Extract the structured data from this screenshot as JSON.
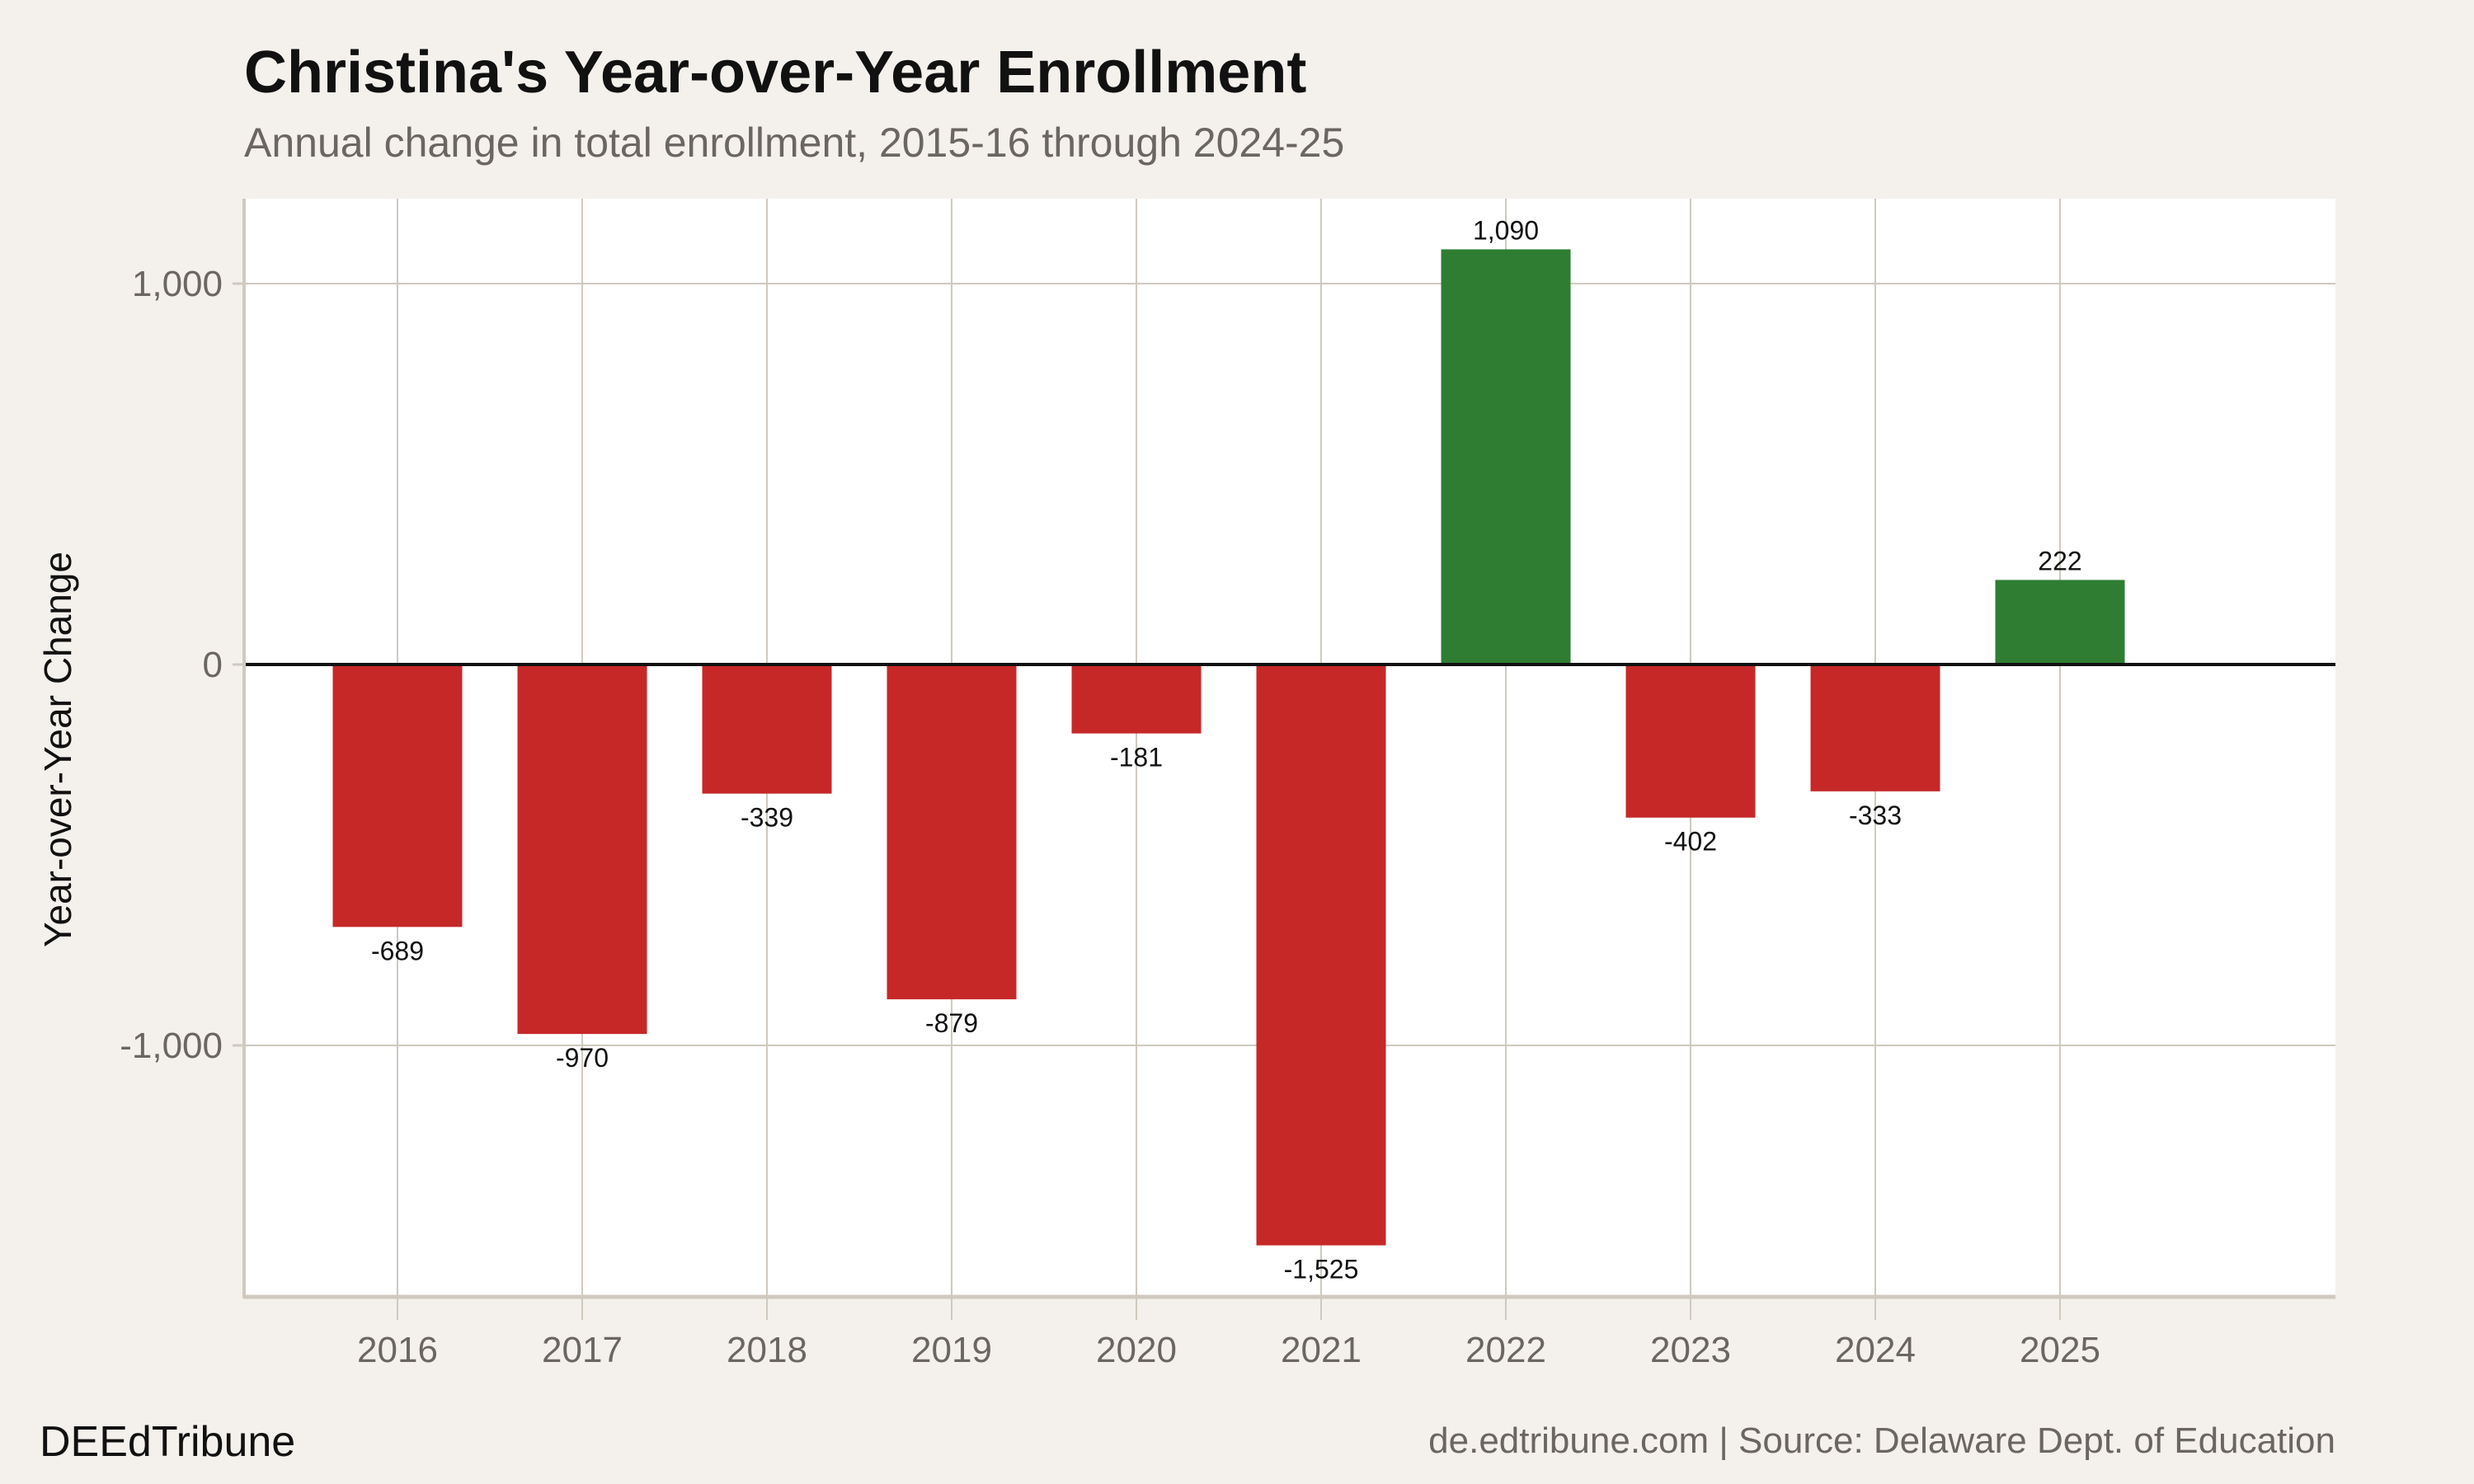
{
  "chart_data": {
    "type": "bar",
    "title": "Christina's Year-over-Year Enrollment",
    "subtitle": "Annual change in total enrollment, 2015-16 through 2024-25",
    "xlabel": "",
    "ylabel": "Year-over-Year Change",
    "categories": [
      "2016",
      "2017",
      "2018",
      "2019",
      "2020",
      "2021",
      "2022",
      "2023",
      "2024",
      "2025"
    ],
    "values": [
      -689,
      -970,
      -339,
      -879,
      -181,
      -1525,
      1090,
      -402,
      -333,
      222
    ],
    "data_labels": [
      "-689",
      "-970",
      "-339",
      "-879",
      "-181",
      "-1,525",
      "1,090",
      "-402",
      "-333",
      "222"
    ],
    "ylim": [
      -1660,
      1223
    ],
    "yticks": [
      1000,
      0,
      -1000
    ],
    "ytick_labels": [
      "1,000",
      "0",
      "-1,000"
    ],
    "grid": true,
    "legend": "none",
    "colors": {
      "positive": "#2e7d32",
      "negative": "#c62828",
      "background": "#f4f1ec",
      "panel": "#ffffff",
      "grid": "#cfc9bf"
    }
  },
  "footer": {
    "brand": "DEEdTribune",
    "source": "de.edtribune.com | Source: Delaware Dept. of Education"
  }
}
